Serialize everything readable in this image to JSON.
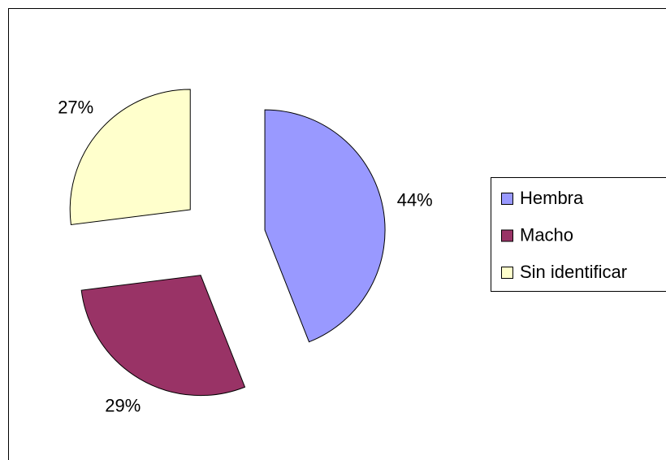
{
  "chart_data": {
    "type": "pie",
    "categories": [
      "Hembra",
      "Macho",
      "Sin identificar"
    ],
    "values": [
      44,
      29,
      27
    ],
    "value_labels": [
      "44%",
      "29%",
      "27%"
    ],
    "colors": [
      "#9999ff",
      "#993366",
      "#ffffcc"
    ],
    "legend": "right"
  }
}
